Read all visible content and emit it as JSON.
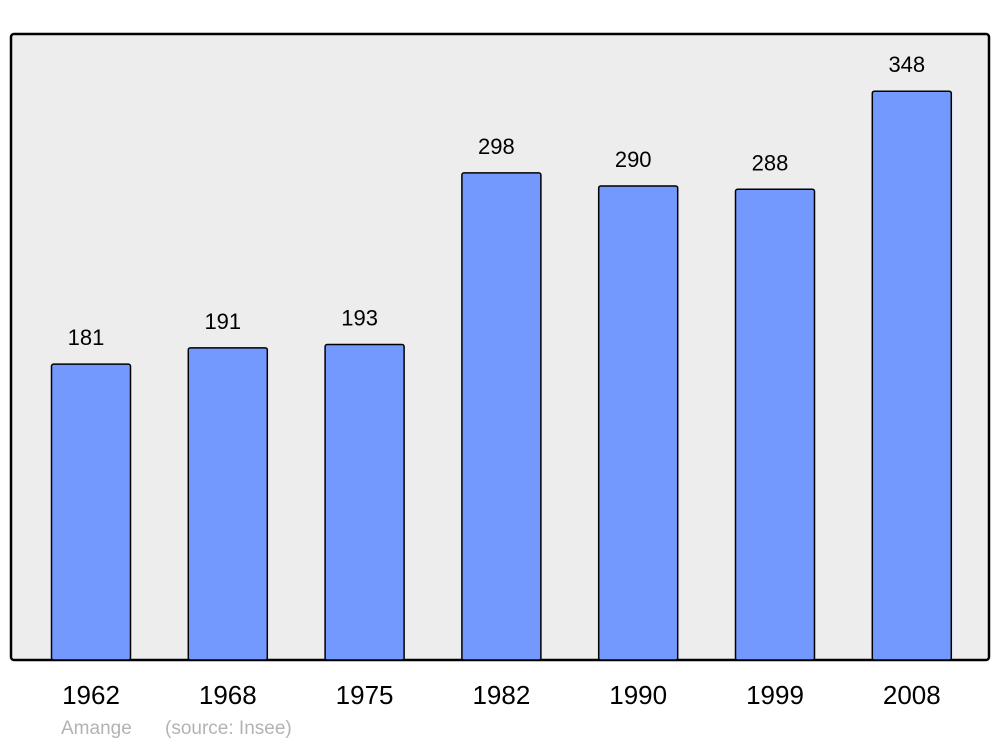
{
  "chart_data": {
    "type": "bar",
    "title": "",
    "xlabel": "",
    "ylabel": "",
    "categories": [
      "1962",
      "1968",
      "1975",
      "1982",
      "1990",
      "1999",
      "2008"
    ],
    "values": [
      181,
      191,
      193,
      298,
      290,
      288,
      348
    ],
    "ylim": [
      0,
      383
    ],
    "grid": false,
    "data_labels": true,
    "colors": {
      "bar": "#7399ff",
      "plot_background": "#ededed",
      "frame": "#000000"
    }
  },
  "footer": {
    "place": "Amange",
    "source": "(source: Insee)"
  }
}
